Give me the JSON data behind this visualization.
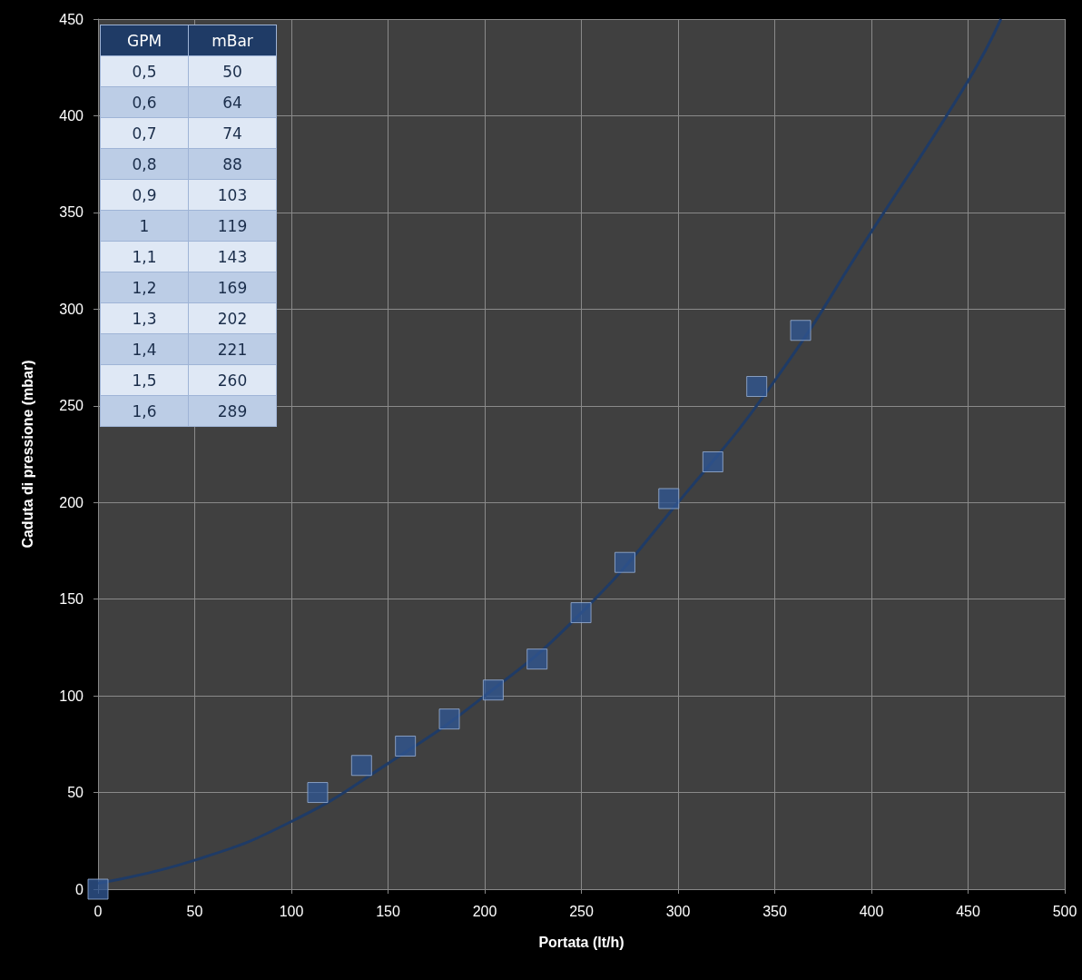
{
  "chart_data": {
    "type": "scatter",
    "xlabel": "Portata (lt/h)",
    "ylabel": "Caduta di pressione (mbar)",
    "xlim": [
      0,
      500
    ],
    "xticks": [
      0,
      50,
      100,
      150,
      200,
      250,
      300,
      350,
      400,
      450,
      500
    ],
    "ylim": [
      0,
      450
    ],
    "yticks": [
      0,
      50,
      100,
      150,
      200,
      250,
      300,
      350,
      400,
      450
    ],
    "grid": true,
    "marker": "square",
    "annotations": [
      "GPM",
      "mBar",
      "0,5",
      "50",
      "0,6",
      "64",
      "0,7",
      "74",
      "0,8",
      "88",
      "0,9",
      "103",
      "1",
      "119",
      "1,1",
      "143",
      "1,2",
      "169",
      "1,3",
      "202",
      "1,4",
      "221",
      "1,5",
      "260",
      "1,6",
      "289"
    ],
    "series": [
      {
        "type": "line",
        "marker": "none",
        "color": "#1f3b66",
        "x": [
          0,
          50,
          100,
          150,
          200,
          250,
          300,
          350,
          400,
          450,
          467
        ],
        "values": [
          3,
          15,
          35,
          65,
          100,
          143,
          200,
          263,
          340,
          418,
          450
        ]
      },
      {
        "color": "#2f5590",
        "x": [
          0,
          113.6,
          136.3,
          159,
          181.7,
          204.4,
          227.1,
          249.8,
          272.5,
          295.2,
          318,
          340.7,
          363.4
        ],
        "values": [
          0,
          50,
          64,
          74,
          88,
          103,
          119,
          143,
          169,
          202,
          221,
          260,
          289
        ]
      }
    ]
  }
}
